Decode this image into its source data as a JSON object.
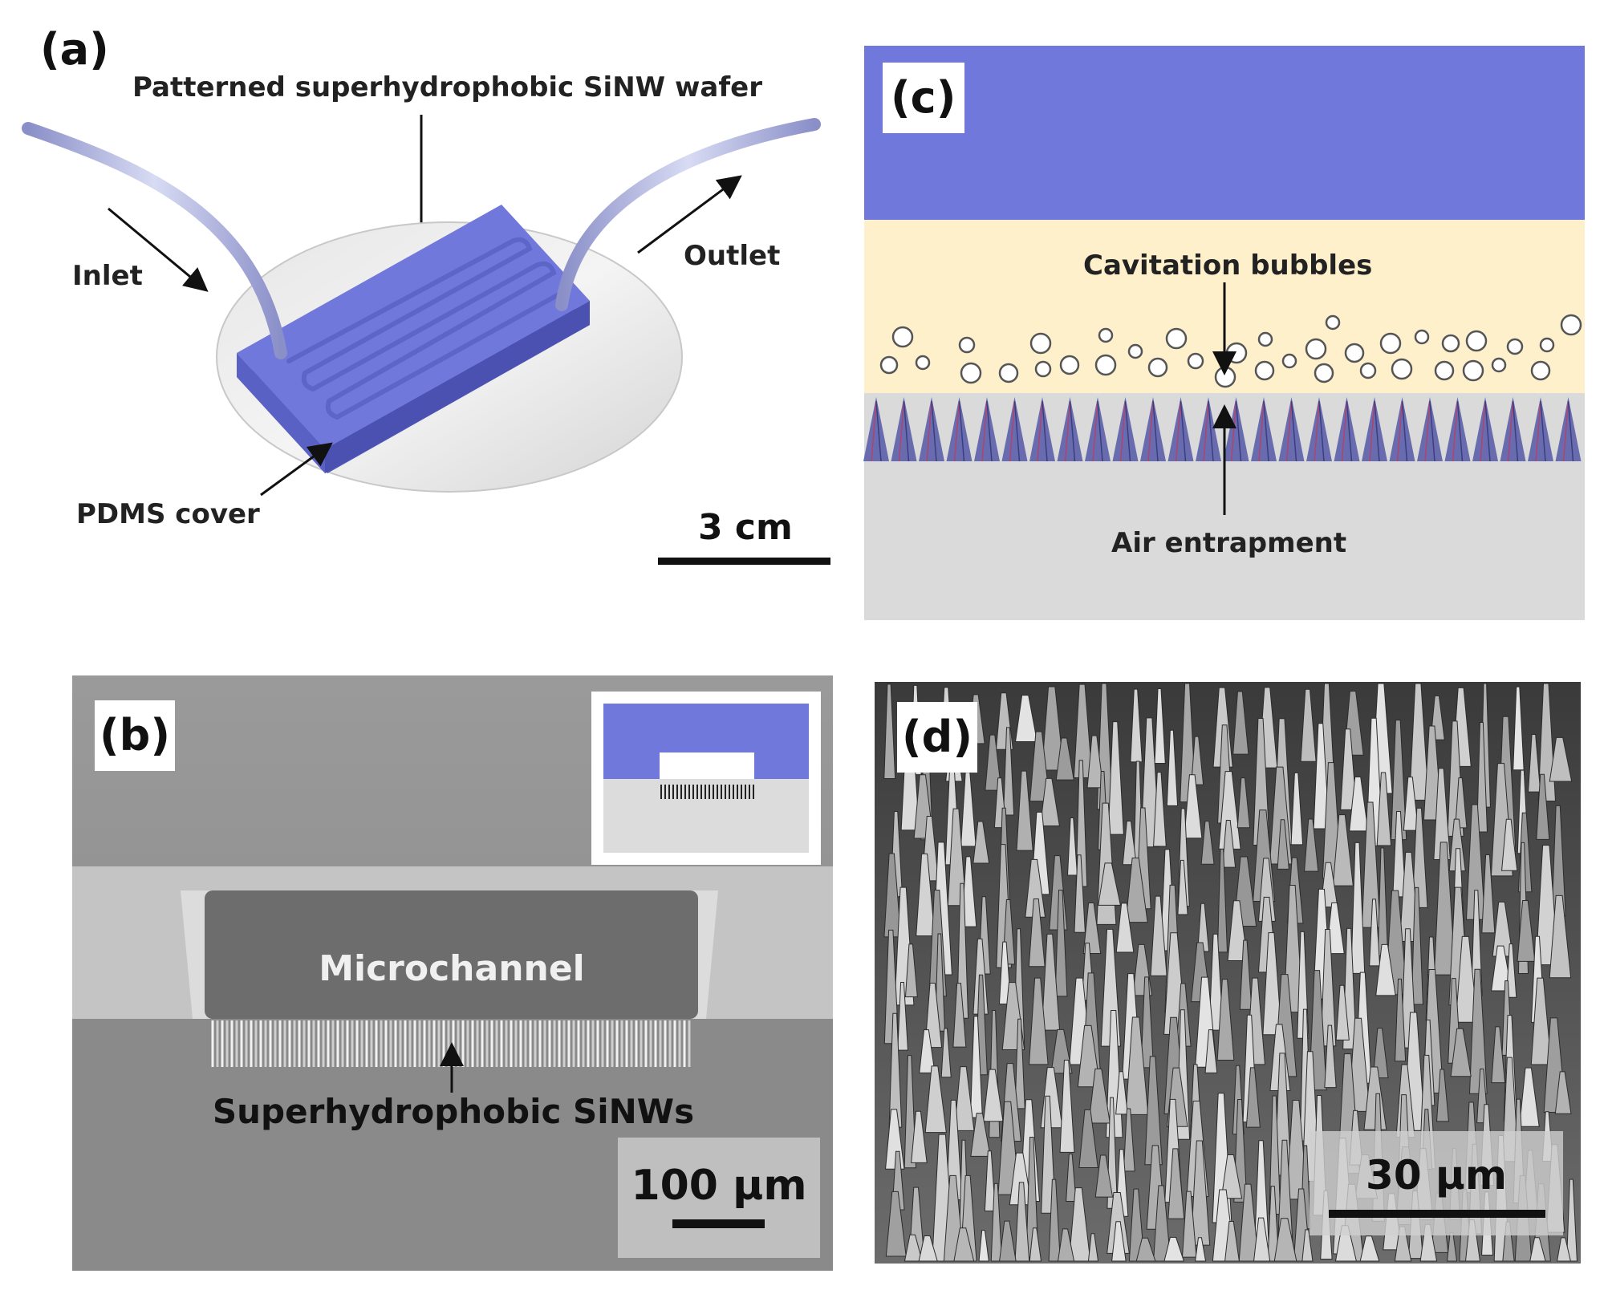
{
  "panels": {
    "a": {
      "label": "(a)",
      "wafer_label": "Patterned superhydrophobic SiNW wafer",
      "inlet_label": "Inlet",
      "outlet_label": "Outlet",
      "cover_label": "PDMS cover",
      "scale_label": "3 cm"
    },
    "b": {
      "label": "(b)",
      "channel_label": "Microchannel",
      "sinw_label": "Superhydrophobic SiNWs",
      "scale_label": "100 μm"
    },
    "c": {
      "label": "(c)",
      "bubbles_label": "Cavitation bubbles",
      "air_label": "Air entrapment"
    },
    "d": {
      "label": "(d)",
      "scale_label": "30 μm"
    }
  },
  "colors": {
    "pdms_blue": "#7078DC",
    "fluid_yellow": "#FFF0CC",
    "substrate_gray": "#DADADA",
    "sem_gray": "#8C8C8C"
  }
}
